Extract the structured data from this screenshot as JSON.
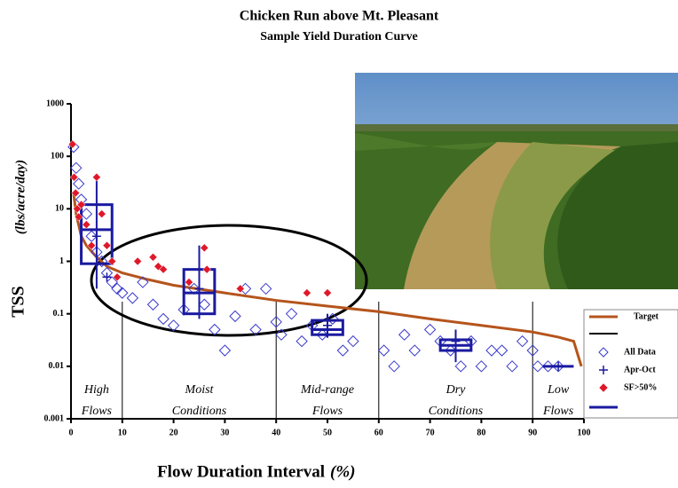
{
  "chart_data": {
    "type": "scatter",
    "title": "Chicken Run above Mt. Pleasant",
    "subtitle": "Sample Yield Duration Curve",
    "y_label": "TSS",
    "y_unit": "(lbs/acre/day)",
    "x_label": "Flow Duration Interval",
    "x_unit": "(%)",
    "log_y": true,
    "xlim": [
      0,
      100
    ],
    "ylim": [
      0.001,
      1000
    ],
    "xticks": [
      0,
      10,
      20,
      30,
      40,
      50,
      60,
      70,
      80,
      90,
      100
    ],
    "yticks": [
      0.001,
      0.01,
      0.1,
      1,
      10,
      100,
      1000
    ],
    "zones": {
      "boundaries": [
        10,
        40,
        60,
        90
      ],
      "centers": [
        5,
        25,
        50,
        75,
        95
      ],
      "labels": [
        [
          "High",
          "Flows"
        ],
        [
          "Moist",
          "Conditions"
        ],
        [
          "Mid-range",
          "Flows"
        ],
        [
          "Dry",
          "Conditions"
        ],
        [
          "Low",
          "Flows"
        ]
      ]
    },
    "series": [
      {
        "name": "Target",
        "kind": "line",
        "color": "#b5541c",
        "x": [
          0.5,
          1,
          2,
          3,
          5,
          7,
          10,
          15,
          20,
          30,
          40,
          50,
          60,
          70,
          80,
          90,
          95,
          98,
          99.5
        ],
        "values": [
          20,
          8,
          3,
          2,
          1.2,
          0.8,
          0.6,
          0.45,
          0.35,
          0.25,
          0.18,
          0.14,
          0.11,
          0.08,
          0.06,
          0.045,
          0.036,
          0.03,
          0.01
        ]
      },
      {
        "name": "All Data",
        "kind": "open-diamond",
        "color": "#3a3acc",
        "x": [
          0.5,
          1,
          1.5,
          2,
          3,
          4,
          5,
          6,
          7,
          8,
          9,
          10,
          12,
          14,
          16,
          18,
          20,
          22,
          24,
          26,
          28,
          30,
          32,
          34,
          36,
          38,
          40,
          41,
          43,
          45,
          47,
          49,
          51,
          53,
          55,
          61,
          63,
          65,
          67,
          70,
          72,
          74,
          76,
          78,
          80,
          82,
          84,
          86,
          88,
          90,
          91,
          93,
          95
        ],
        "values": [
          150,
          60,
          30,
          15,
          8,
          3,
          1.5,
          1,
          0.6,
          0.4,
          0.3,
          0.25,
          0.2,
          0.4,
          0.15,
          0.08,
          0.06,
          0.12,
          0.3,
          0.15,
          0.05,
          0.02,
          0.09,
          0.3,
          0.05,
          0.3,
          0.07,
          0.04,
          0.1,
          0.03,
          0.06,
          0.04,
          0.08,
          0.02,
          0.03,
          0.02,
          0.01,
          0.04,
          0.02,
          0.05,
          0.03,
          0.02,
          0.01,
          0.03,
          0.01,
          0.02,
          0.02,
          0.01,
          0.03,
          0.02,
          0.01,
          0.01,
          0.01
        ]
      },
      {
        "name": "Apr-Oct",
        "kind": "plus",
        "color": "#1a1aa0",
        "x": [
          5,
          7,
          25,
          50,
          75,
          95
        ],
        "values": [
          3,
          0.5,
          0.3,
          0.06,
          0.03,
          0.01
        ]
      },
      {
        "name": "SF>50%",
        "kind": "filled-diamond",
        "color": "#e0182a",
        "x": [
          0.3,
          0.6,
          0.9,
          1.2,
          1.5,
          2,
          3,
          4,
          5,
          6,
          7,
          8,
          9,
          13,
          16,
          17,
          18,
          23,
          26,
          26.5,
          33,
          46,
          50
        ],
        "values": [
          170,
          40,
          20,
          10,
          7,
          12,
          5,
          2,
          40,
          8,
          2,
          1,
          0.5,
          1,
          1.2,
          0.8,
          0.7,
          0.4,
          1.8,
          0.7,
          0.3,
          0.25,
          0.25
        ]
      }
    ],
    "boxes": {
      "color": "#1a1aa0",
      "x": [
        5,
        25,
        50,
        75,
        95
      ],
      "low": [
        0.3,
        0.08,
        0.035,
        0.012,
        0.01
      ],
      "q1": [
        0.9,
        0.1,
        0.04,
        0.02,
        0.01
      ],
      "median": [
        4,
        0.25,
        0.05,
        0.025,
        0.01
      ],
      "q3": [
        12,
        0.7,
        0.075,
        0.032,
        0.01
      ],
      "high": [
        40,
        2,
        0.1,
        0.05,
        0.01
      ]
    }
  }
}
